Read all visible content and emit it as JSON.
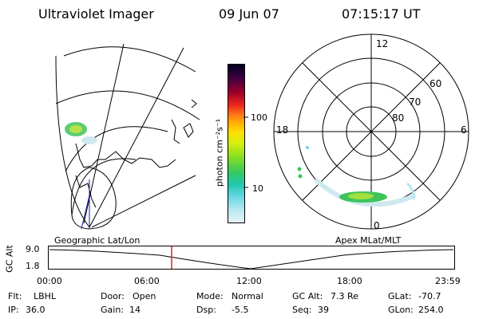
{
  "header": {
    "instrument": "Ultraviolet Imager",
    "date": "09 Jun 07",
    "time": "07:15:17 UT"
  },
  "colorbar": {
    "unit_label": "photon cm⁻²s⁻¹",
    "ticks": [
      "100",
      "10"
    ]
  },
  "left_panel": {
    "caption": "Geographic Lat/Lon"
  },
  "right_panel": {
    "caption": "Apex MLat/MLT",
    "clock_labels": {
      "top": "12",
      "left": "18",
      "right": "6",
      "bottom": "0"
    },
    "ring_labels": [
      "60",
      "70",
      "80"
    ]
  },
  "timeline": {
    "y_label": "GC Alt",
    "y_ticks": [
      "9.0",
      "1.8"
    ],
    "x_ticks": [
      "00:00",
      "06:00",
      "12:00",
      "18:00",
      "23:59"
    ],
    "marker_time": "07:15"
  },
  "status": {
    "filter_label": "Flt:",
    "filter_value": "LBHL",
    "ip_label": "IP:",
    "ip_value": "36.0",
    "door_label": "Door:",
    "door_value": "Open",
    "gain_label": "Gain:",
    "gain_value": "14",
    "mode_label": "Mode:",
    "mode_value": "Normal",
    "dsp_label": "Dsp:",
    "dsp_value": "-5.5",
    "gcalt_label": "GC Alt:",
    "gcalt_value": "7.3 Re",
    "seq_label": "Seq:",
    "seq_value": "39",
    "glat_label": "GLat:",
    "glat_value": "-70.7",
    "glon_label": "GLon:",
    "glon_value": "254.0"
  }
}
